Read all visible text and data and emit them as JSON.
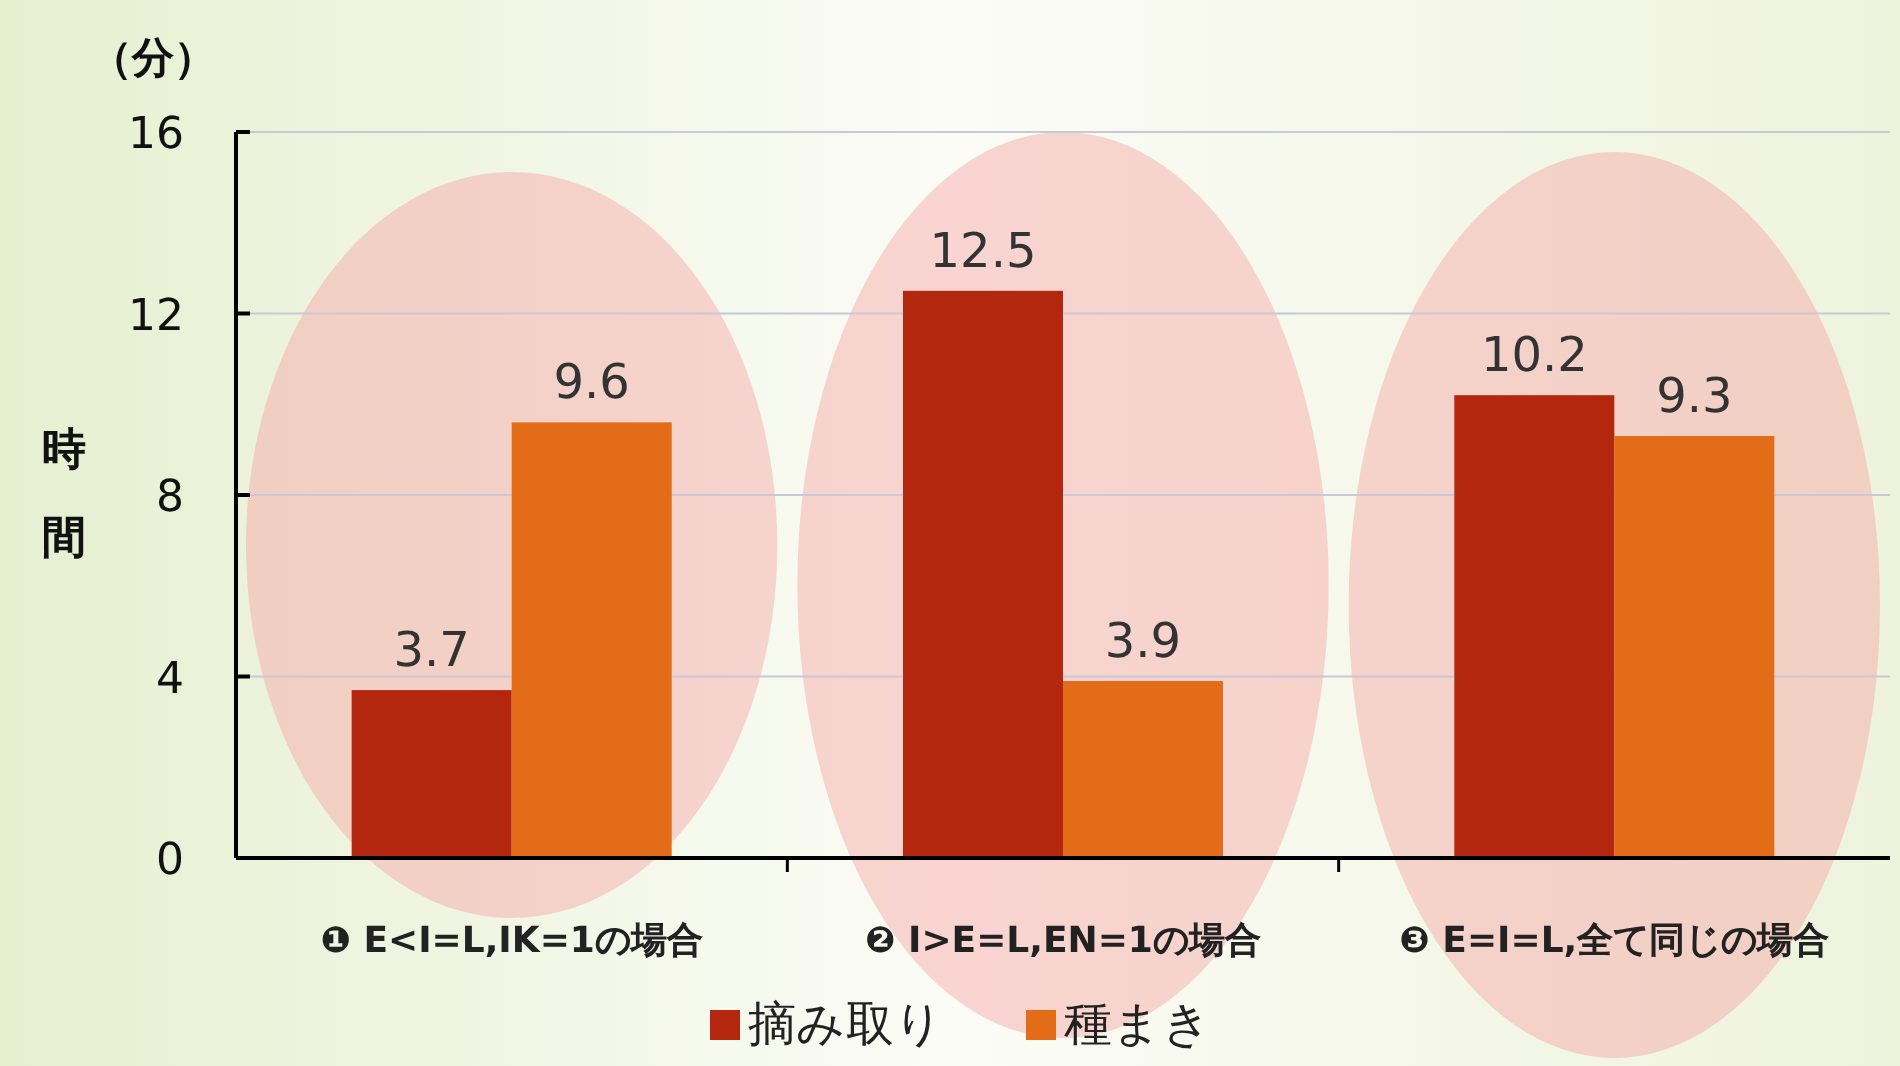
{
  "chart_data": {
    "type": "bar",
    "categories": [
      "❶ E<I=L,IK=1の場合",
      "❷ I>E=L,EN=1の場合",
      "❸ E=I=L,全て同じの場合"
    ],
    "series": [
      {
        "name": "摘み取り",
        "color": "#b3270f",
        "values": [
          3.7,
          12.5,
          10.2
        ]
      },
      {
        "name": "種まき",
        "color": "#e26c17",
        "values": [
          9.6,
          3.9,
          9.3
        ]
      }
    ],
    "ylabel": "時間",
    "annotations": [
      "（分）"
    ],
    "ylim": [
      0,
      16
    ],
    "yticks": [
      0,
      4,
      8,
      12,
      16
    ],
    "grid": "y",
    "legend": "bottom",
    "data_labels": true
  }
}
